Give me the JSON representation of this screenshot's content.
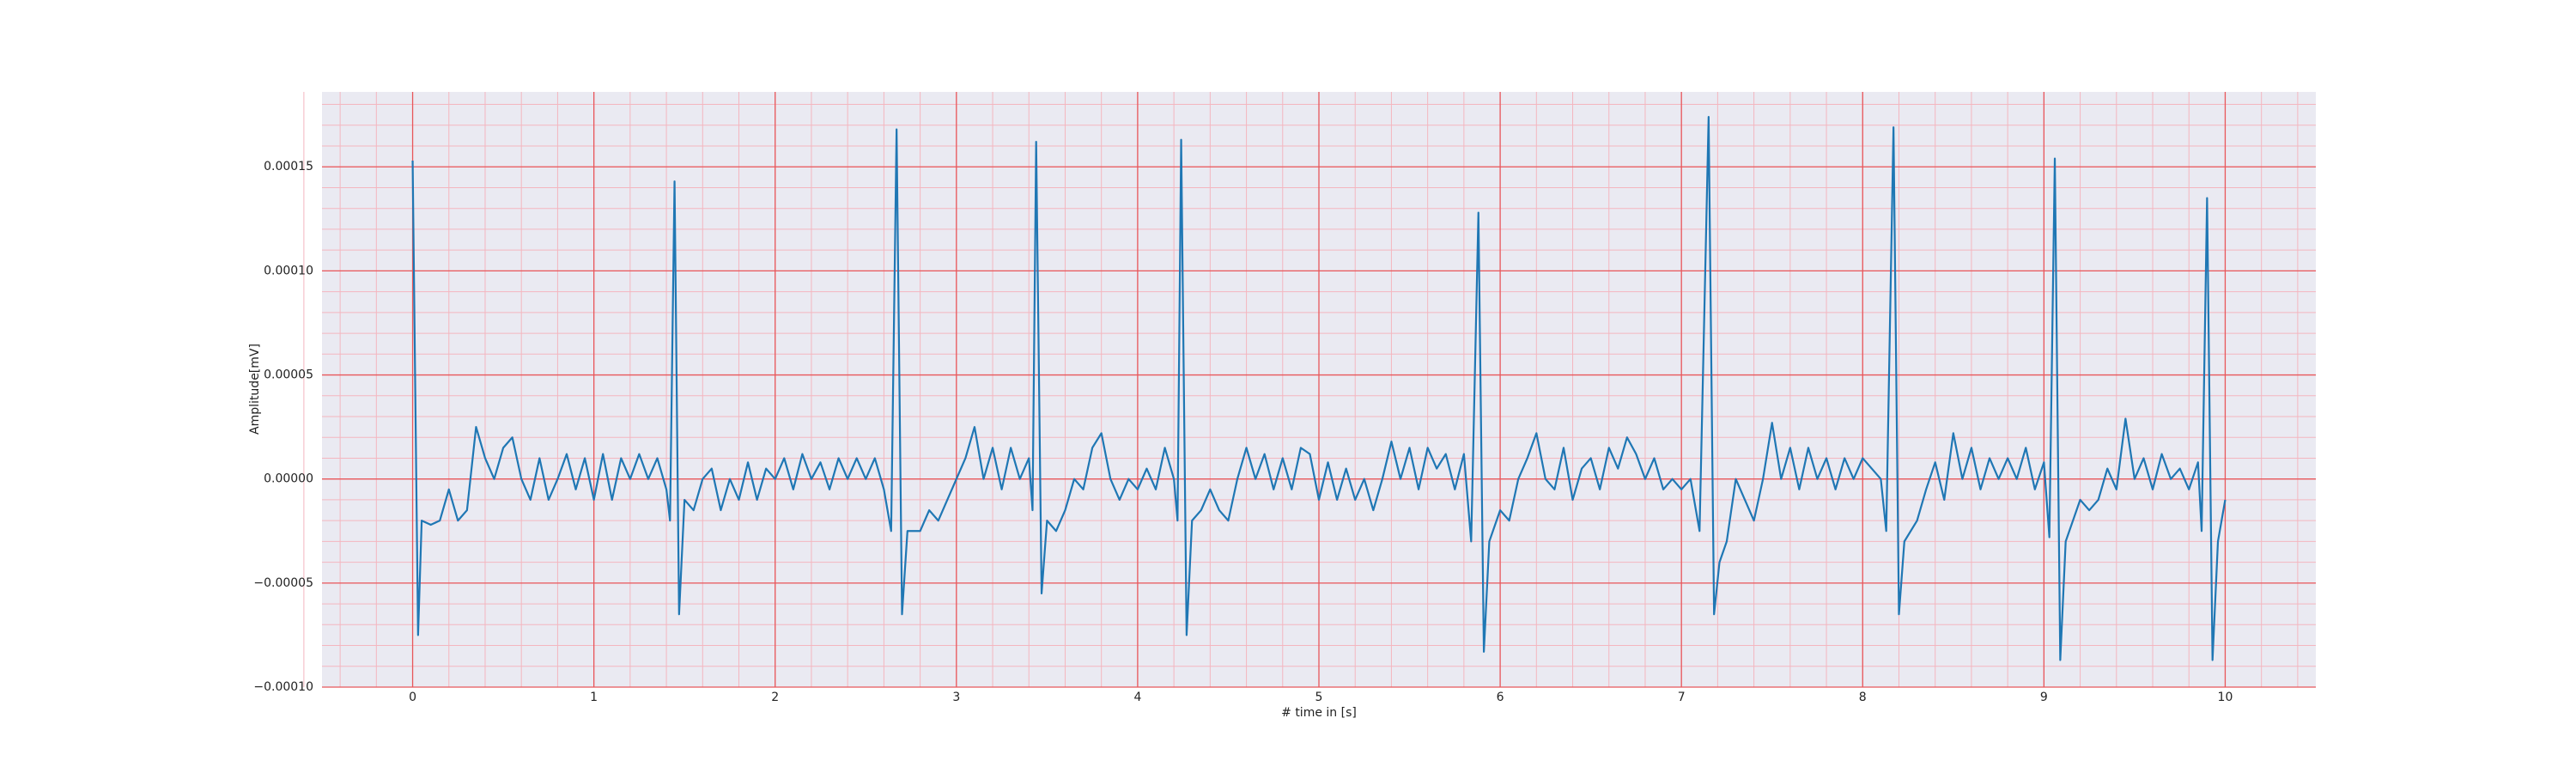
{
  "chart_data": {
    "type": "line",
    "xlabel": "# time in [s]",
    "ylabel": "Amplitude[mV]",
    "xlim": [
      -0.5,
      10.5
    ],
    "ylim": [
      -0.0001,
      0.000186
    ],
    "xticks": [
      0,
      1,
      2,
      3,
      4,
      5,
      6,
      7,
      8,
      9,
      10
    ],
    "yticks": [
      {
        "value": -0.0001,
        "label": "−0.00010"
      },
      {
        "value": -5e-05,
        "label": "−0.00005"
      },
      {
        "value": 0,
        "label": "0.00000"
      },
      {
        "value": 5e-05,
        "label": "0.00005"
      },
      {
        "value": 0.0001,
        "label": "0.00010"
      },
      {
        "value": 0.00015,
        "label": "0.00015"
      }
    ],
    "grid": true,
    "minor_grid": true,
    "series": [
      {
        "color": "#1f77b4",
        "x": [
          0,
          0.03,
          0.05,
          0.1,
          0.15,
          0.2,
          0.25,
          0.3,
          0.35,
          0.4,
          0.45,
          0.5,
          0.55,
          0.6,
          0.65,
          0.7,
          0.75,
          0.8,
          0.85,
          0.9,
          0.95,
          1.0,
          1.05,
          1.1,
          1.15,
          1.2,
          1.25,
          1.3,
          1.35,
          1.4,
          1.42,
          1.445,
          1.47,
          1.5,
          1.55,
          1.6,
          1.65,
          1.7,
          1.75,
          1.8,
          1.85,
          1.9,
          1.95,
          2.0,
          2.05,
          2.1,
          2.15,
          2.2,
          2.25,
          2.3,
          2.35,
          2.4,
          2.45,
          2.5,
          2.55,
          2.6,
          2.64,
          2.67,
          2.7,
          2.73,
          2.8,
          2.85,
          2.9,
          2.95,
          3.0,
          3.05,
          3.1,
          3.15,
          3.2,
          3.25,
          3.3,
          3.35,
          3.4,
          3.42,
          3.44,
          3.47,
          3.5,
          3.55,
          3.6,
          3.65,
          3.7,
          3.75,
          3.8,
          3.85,
          3.9,
          3.95,
          4.0,
          4.05,
          4.1,
          4.15,
          4.2,
          4.22,
          4.24,
          4.27,
          4.3,
          4.35,
          4.4,
          4.45,
          4.5,
          4.55,
          4.6,
          4.65,
          4.7,
          4.75,
          4.8,
          4.85,
          4.9,
          4.95,
          5.0,
          5.05,
          5.1,
          5.15,
          5.2,
          5.25,
          5.3,
          5.35,
          5.4,
          5.45,
          5.5,
          5.55,
          5.6,
          5.65,
          5.7,
          5.75,
          5.8,
          5.84,
          5.88,
          5.91,
          5.94,
          6.0,
          6.05,
          6.1,
          6.15,
          6.2,
          6.25,
          6.3,
          6.35,
          6.4,
          6.45,
          6.5,
          6.55,
          6.6,
          6.65,
          6.7,
          6.75,
          6.8,
          6.85,
          6.9,
          6.95,
          7.0,
          7.05,
          7.1,
          7.15,
          7.18,
          7.21,
          7.25,
          7.3,
          7.35,
          7.4,
          7.45,
          7.5,
          7.55,
          7.6,
          7.65,
          7.7,
          7.75,
          7.8,
          7.85,
          7.9,
          7.95,
          8.0,
          8.05,
          8.1,
          8.13,
          8.17,
          8.2,
          8.23,
          8.3,
          8.35,
          8.4,
          8.45,
          8.5,
          8.55,
          8.6,
          8.65,
          8.7,
          8.75,
          8.8,
          8.85,
          8.9,
          8.95,
          9.0,
          9.03,
          9.06,
          9.09,
          9.12,
          9.2,
          9.25,
          9.3,
          9.35,
          9.4,
          9.45,
          9.5,
          9.55,
          9.6,
          9.65,
          9.7,
          9.75,
          9.8,
          9.85,
          9.87,
          9.9,
          9.93,
          9.96,
          10.0
        ],
        "values": [
          0.000153,
          -7.5e-05,
          -2e-05,
          -2.2e-05,
          -2e-05,
          -5e-06,
          -2e-05,
          -1.5e-05,
          2.5e-05,
          1e-05,
          0,
          1.5e-05,
          2e-05,
          0,
          -1e-05,
          1e-05,
          -1e-05,
          0,
          1.2e-05,
          -5e-06,
          1e-05,
          -1e-05,
          1.2e-05,
          -1e-05,
          1e-05,
          0,
          1.2e-05,
          0,
          1e-05,
          -5e-06,
          -2e-05,
          0.000143,
          -6.5e-05,
          -1e-05,
          -1.5e-05,
          0,
          5e-06,
          -1.5e-05,
          0,
          -1e-05,
          8e-06,
          -1e-05,
          5e-06,
          0,
          1e-05,
          -5e-06,
          1.2e-05,
          0,
          8e-06,
          -5e-06,
          1e-05,
          0,
          1e-05,
          0,
          1e-05,
          -5e-06,
          -2.5e-05,
          0.000168,
          -6.5e-05,
          -2.5e-05,
          -2.5e-05,
          -1.5e-05,
          -2e-05,
          -1e-05,
          0,
          1e-05,
          2.5e-05,
          0,
          1.5e-05,
          -5e-06,
          1.5e-05,
          0,
          1e-05,
          -1.5e-05,
          0.000162,
          -5.5e-05,
          -2e-05,
          -2.5e-05,
          -1.5e-05,
          0,
          -5e-06,
          1.5e-05,
          2.2e-05,
          0,
          -1e-05,
          0,
          -5e-06,
          5e-06,
          -5e-06,
          1.5e-05,
          0,
          -2e-05,
          0.000163,
          -7.5e-05,
          -2e-05,
          -1.5e-05,
          -5e-06,
          -1.5e-05,
          -2e-05,
          0,
          1.5e-05,
          0,
          1.2e-05,
          -5e-06,
          1e-05,
          -5e-06,
          1.5e-05,
          1.2e-05,
          -1e-05,
          8e-06,
          -1e-05,
          5e-06,
          -1e-05,
          0,
          -1.5e-05,
          0,
          1.8e-05,
          0,
          1.5e-05,
          -5e-06,
          1.5e-05,
          5e-06,
          1.2e-05,
          -5e-06,
          1.2e-05,
          -3e-05,
          0.000128,
          -8.3e-05,
          -3e-05,
          -1.5e-05,
          -2e-05,
          0,
          1e-05,
          2.2e-05,
          0,
          -5e-06,
          1.5e-05,
          -1e-05,
          5e-06,
          1e-05,
          -5e-06,
          1.5e-05,
          5e-06,
          2e-05,
          1.2e-05,
          0,
          1e-05,
          -5e-06,
          0,
          -5e-06,
          0,
          -2.5e-05,
          0.000174,
          -6.5e-05,
          -4e-05,
          -3e-05,
          0,
          -1e-05,
          -2e-05,
          0,
          2.7e-05,
          0,
          1.5e-05,
          -5e-06,
          1.5e-05,
          0,
          1e-05,
          -5e-06,
          1e-05,
          0,
          1e-05,
          5e-06,
          0,
          -2.5e-05,
          0.000169,
          -6.5e-05,
          -3e-05,
          -2e-05,
          -5e-06,
          8e-06,
          -1e-05,
          2.2e-05,
          0,
          1.5e-05,
          -5e-06,
          1e-05,
          0,
          1e-05,
          0,
          1.5e-05,
          -5e-06,
          8e-06,
          -2.8e-05,
          0.000154,
          -8.7e-05,
          -3e-05,
          -1e-05,
          -1.5e-05,
          -1e-05,
          5e-06,
          -5e-06,
          2.9e-05,
          0,
          1e-05,
          -5e-06,
          1.2e-05,
          0,
          5e-06,
          -5e-06,
          8e-06,
          -2.5e-05,
          0.000135,
          -8.7e-05,
          -3e-05,
          -1e-05
        ]
      }
    ]
  }
}
